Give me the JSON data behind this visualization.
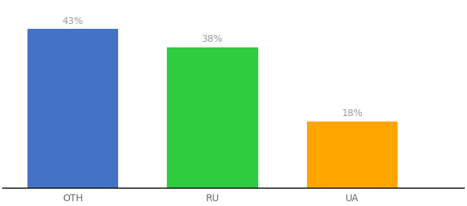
{
  "categories": [
    "OTH",
    "RU",
    "UA"
  ],
  "values": [
    43,
    38,
    18
  ],
  "bar_colors": [
    "#4472C4",
    "#2ECC40",
    "#FFA500"
  ],
  "label_color": "#999999",
  "ylim": [
    0,
    50
  ],
  "bar_width": 0.65,
  "label_fontsize": 10,
  "tick_fontsize": 10,
  "background_color": "#ffffff",
  "bar_positions": [
    0,
    1,
    2
  ],
  "xlim": [
    -0.5,
    2.8
  ]
}
